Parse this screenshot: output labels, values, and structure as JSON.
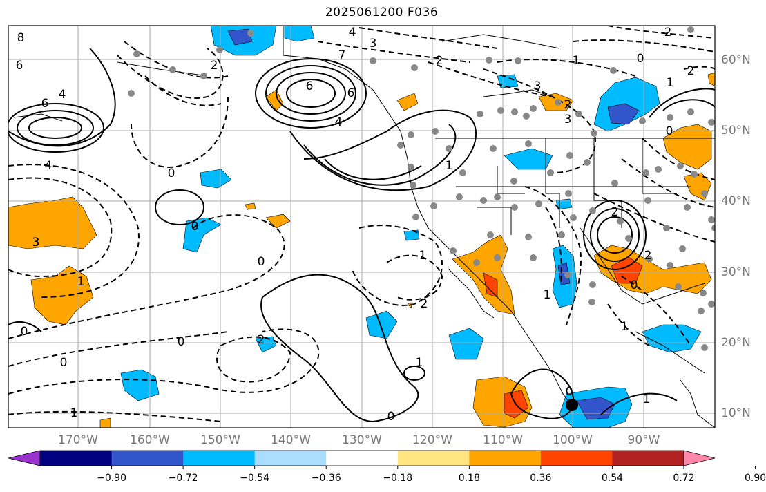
{
  "title": "2025061200 F036",
  "lon_labels": [
    "170°W",
    "160°W",
    "150°W",
    "140°W",
    "130°W",
    "120°W",
    "110°W",
    "100°W",
    "90°W"
  ],
  "lat_labels": [
    "60°N",
    "50°N",
    "40°N",
    "30°N",
    "20°N",
    "10°N"
  ],
  "colorbar": {
    "ticks": [
      "−0.90",
      "−0.72",
      "−0.54",
      "−0.36",
      "−0.18",
      "0.18",
      "0.36",
      "0.54",
      "0.72",
      "0.90"
    ],
    "colors": [
      "#9933cc",
      "#000080",
      "#3355cc",
      "#00bbff",
      "#aaddff",
      "#ffffff",
      "#ffe680",
      "#ffa500",
      "#ff4400",
      "#b22222",
      "#ff88aa"
    ]
  },
  "contour_labels": [
    "8",
    "6",
    "4",
    "6",
    "4",
    "3",
    "0",
    "2",
    "3",
    "6",
    "4",
    "7",
    "6",
    "4",
    "2",
    "3",
    "2",
    "1",
    "2",
    "0",
    "1",
    "3",
    "0",
    "2",
    "1",
    "0",
    "0",
    "2",
    "0",
    "3",
    "0",
    "1",
    "0",
    "1",
    "2",
    "1",
    "0",
    "0",
    "1",
    "2",
    "2",
    "1",
    "1",
    "0",
    "1"
  ]
}
